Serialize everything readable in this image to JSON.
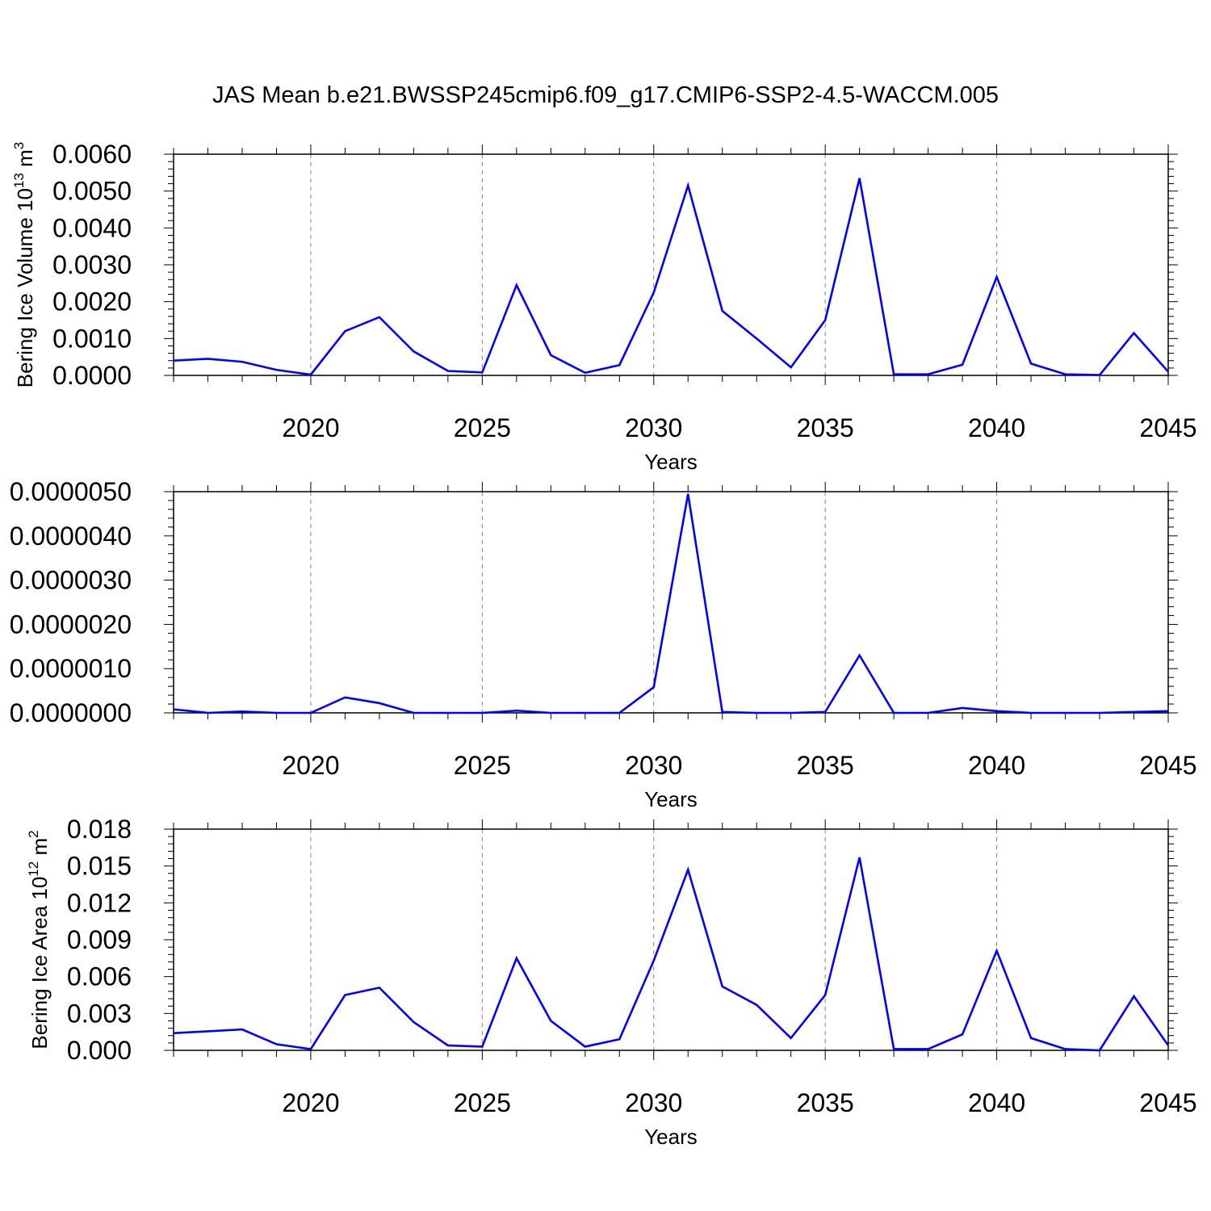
{
  "title": "JAS Mean b.e21.BWSSP245cmip6.f09_g17.CMIP6-SSP2-4.5-WACCM.005",
  "colors": {
    "line": "#0000ff",
    "axis": "#000000",
    "grid": "#808080"
  },
  "chart_data": [
    {
      "type": "line",
      "xlabel": "Years",
      "ylabel_main": "Bering Ice Volume 10",
      "ylabel_sup": "13",
      "ylabel_unit": " m",
      "ylabel_unit_sup": "3",
      "xlim": [
        2016,
        2045
      ],
      "ylim": [
        0,
        0.006
      ],
      "xticks": [
        "2020",
        "2025",
        "2030",
        "2035",
        "2040",
        "2045"
      ],
      "yticks": [
        "0.0000",
        "0.0010",
        "0.0020",
        "0.0030",
        "0.0040",
        "0.0050",
        "0.0060"
      ],
      "grid": "vertical dashed at major x ticks",
      "x": [
        2016,
        2017,
        2018,
        2019,
        2020,
        2021,
        2022,
        2023,
        2024,
        2025,
        2026,
        2027,
        2028,
        2029,
        2030,
        2031,
        2032,
        2033,
        2034,
        2035,
        2036,
        2037,
        2038,
        2039,
        2040,
        2041,
        2042,
        2043,
        2044,
        2045
      ],
      "values": [
        0.0004,
        0.00045,
        0.00037,
        0.00015,
        2e-05,
        0.0012,
        0.00158,
        0.00065,
        0.00012,
        8e-05,
        0.00245,
        0.00055,
        7e-05,
        0.00028,
        0.00225,
        0.00515,
        0.00175,
        0.001,
        0.00022,
        0.0015,
        0.00535,
        3e-05,
        3e-05,
        0.00029,
        0.00267,
        0.00032,
        3e-05,
        1e-05,
        0.00115,
        0.0001
      ]
    },
    {
      "type": "line",
      "xlabel": "Years",
      "ylabel_main": "",
      "ylabel_sup": "",
      "ylabel_unit": "",
      "ylabel_unit_sup": "",
      "xlim": [
        2016,
        2045
      ],
      "ylim": [
        0,
        5e-06
      ],
      "xticks": [
        "2020",
        "2025",
        "2030",
        "2035",
        "2040",
        "2045"
      ],
      "yticks": [
        "0.0000000",
        "0.0000010",
        "0.0000020",
        "0.0000030",
        "0.0000040",
        "0.0000050"
      ],
      "grid": "vertical dashed at major x ticks",
      "x": [
        2016,
        2017,
        2018,
        2019,
        2020,
        2021,
        2022,
        2023,
        2024,
        2025,
        2026,
        2027,
        2028,
        2029,
        2030,
        2031,
        2032,
        2033,
        2034,
        2035,
        2036,
        2037,
        2038,
        2039,
        2040,
        2041,
        2042,
        2043,
        2044,
        2045
      ],
      "values": [
        8e-08,
        0.0,
        3e-08,
        0.0,
        0.0,
        3.5e-07,
        2.2e-07,
        0.0,
        0.0,
        0.0,
        5e-08,
        0.0,
        0.0,
        0.0,
        5.8e-07,
        4.95e-06,
        2e-08,
        0.0,
        0.0,
        2e-08,
        1.3e-06,
        0.0,
        0.0,
        1.1e-07,
        4e-08,
        0.0,
        0.0,
        0.0,
        2e-08,
        4e-08
      ]
    },
    {
      "type": "line",
      "xlabel": "Years",
      "ylabel_main": "Bering Ice Area 10",
      "ylabel_sup": "12",
      "ylabel_unit": " m",
      "ylabel_unit_sup": "2",
      "xlim": [
        2016,
        2045
      ],
      "ylim": [
        0,
        0.018
      ],
      "xticks": [
        "2020",
        "2025",
        "2030",
        "2035",
        "2040",
        "2045"
      ],
      "yticks": [
        "0.000",
        "0.003",
        "0.006",
        "0.009",
        "0.012",
        "0.015",
        "0.018"
      ],
      "grid": "vertical dashed at major x ticks",
      "x": [
        2016,
        2017,
        2018,
        2019,
        2020,
        2021,
        2022,
        2023,
        2024,
        2025,
        2026,
        2027,
        2028,
        2029,
        2030,
        2031,
        2032,
        2033,
        2034,
        2035,
        2036,
        2037,
        2038,
        2039,
        2040,
        2041,
        2042,
        2043,
        2044,
        2045
      ],
      "values": [
        0.0014,
        0.00155,
        0.0017,
        0.0005,
        0.0001,
        0.0045,
        0.0051,
        0.0023,
        0.0004,
        0.0003,
        0.0075,
        0.0024,
        0.0003,
        0.0009,
        0.0073,
        0.0147,
        0.0052,
        0.0037,
        0.001,
        0.0045,
        0.0157,
        0.0001,
        0.0001,
        0.0013,
        0.0081,
        0.001,
        0.0001,
        0.0,
        0.0044,
        0.0004
      ]
    }
  ]
}
